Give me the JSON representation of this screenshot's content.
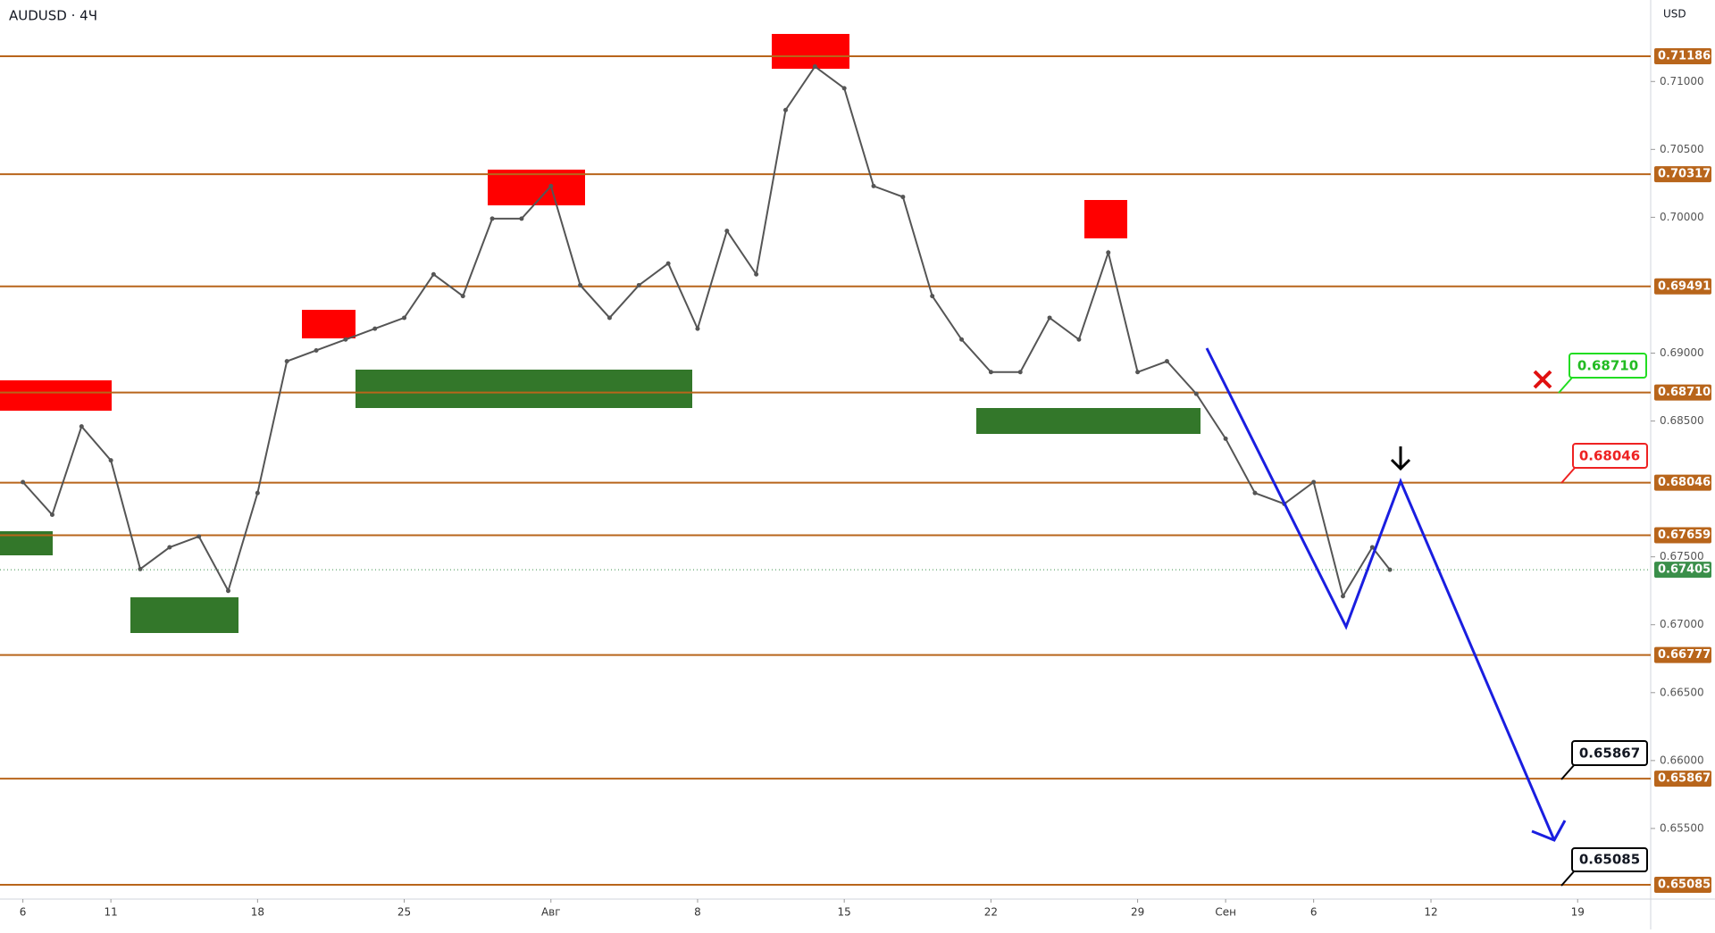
{
  "chart_data": {
    "type": "line",
    "title": "AUDUSD · 4Ч",
    "currency": "USD",
    "color": "#555555",
    "x": [
      0,
      1,
      2,
      3,
      4,
      5,
      6,
      7,
      8,
      9,
      10,
      11,
      12,
      13,
      14,
      15,
      16,
      17,
      18,
      19,
      20,
      21,
      22,
      23,
      24,
      25,
      26,
      27,
      28,
      29,
      30,
      31,
      32,
      33,
      34,
      35,
      36,
      37,
      38,
      39,
      40,
      41,
      42,
      43,
      44,
      45,
      46,
      46.6
    ],
    "values": [
      0.6805,
      0.6781,
      0.6846,
      0.6821,
      0.6741,
      0.6757,
      0.6765,
      0.6725,
      0.6797,
      0.6894,
      0.6902,
      0.691,
      0.6918,
      0.6926,
      0.6958,
      0.6942,
      0.6999,
      0.6999,
      0.7023,
      0.695,
      0.6926,
      0.695,
      0.6966,
      0.6918,
      0.699,
      0.6958,
      0.7079,
      0.7111,
      0.7095,
      0.7023,
      0.7015,
      0.6942,
      0.691,
      0.6886,
      0.6886,
      0.6926,
      0.691,
      0.6974,
      0.6886,
      0.6894,
      0.687,
      0.6837,
      0.6797,
      0.6789,
      0.6805,
      0.6721,
      0.6757,
      0.67405
    ],
    "last_label": "0.67405",
    "xlim": [
      -0.78,
      55.49
    ],
    "ylim": [
      0.6498,
      0.716
    ],
    "xticks": [
      {
        "value": 0,
        "label": "6"
      },
      {
        "value": 3,
        "label": "11"
      },
      {
        "value": 8,
        "label": "18"
      },
      {
        "value": 13,
        "label": "25"
      },
      {
        "value": 18,
        "label": "Авг"
      },
      {
        "value": 23,
        "label": "8"
      },
      {
        "value": 28,
        "label": "15"
      },
      {
        "value": 33,
        "label": "22"
      },
      {
        "value": 38,
        "label": "29"
      },
      {
        "value": 41,
        "label": "Сен"
      },
      {
        "value": 44,
        "label": "6"
      },
      {
        "value": 48,
        "label": "12"
      },
      {
        "value": 53,
        "label": "19"
      }
    ],
    "yticks": [
      {
        "value": 0.71,
        "label": "0.71000"
      },
      {
        "value": 0.705,
        "label": "0.70500"
      },
      {
        "value": 0.7,
        "label": "0.70000"
      },
      {
        "value": 0.69,
        "label": "0.69000"
      },
      {
        "value": 0.685,
        "label": "0.68500"
      },
      {
        "value": 0.675,
        "label": "0.67500"
      },
      {
        "value": 0.67,
        "label": "0.67000"
      },
      {
        "value": 0.665,
        "label": "0.66500"
      },
      {
        "value": 0.66,
        "label": "0.66000"
      },
      {
        "value": 0.655,
        "label": "0.65500"
      }
    ],
    "levels": [
      {
        "value": 0.71186,
        "label": "0.71186"
      },
      {
        "value": 0.70317,
        "label": "0.70317"
      },
      {
        "value": 0.69491,
        "label": "0.69491"
      },
      {
        "value": 0.6871,
        "label": "0.68710"
      },
      {
        "value": 0.68046,
        "label": "0.68046"
      },
      {
        "value": 0.67659,
        "label": "0.67659"
      },
      {
        "value": 0.66777,
        "label": "0.66777"
      },
      {
        "value": 0.65867,
        "label": "0.65867"
      },
      {
        "value": 0.65085,
        "label": "0.65085"
      }
    ],
    "level_color": "#b8651b",
    "callouts": [
      "0.68710",
      "0.68046",
      "0.65867",
      "0.65085"
    ]
  }
}
